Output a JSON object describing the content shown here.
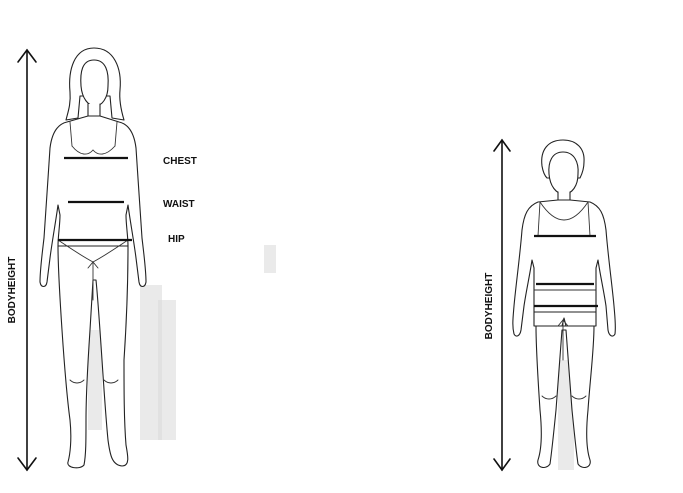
{
  "adult_figure": {
    "height_label": "BODYHEIGHT",
    "measurements": [
      {
        "id": "chest",
        "label": "CHEST"
      },
      {
        "id": "waist",
        "label": "WAIST"
      },
      {
        "id": "hip",
        "label": "HIP"
      }
    ]
  },
  "child_figure": {
    "height_label": "BODYHEIGHT"
  }
}
